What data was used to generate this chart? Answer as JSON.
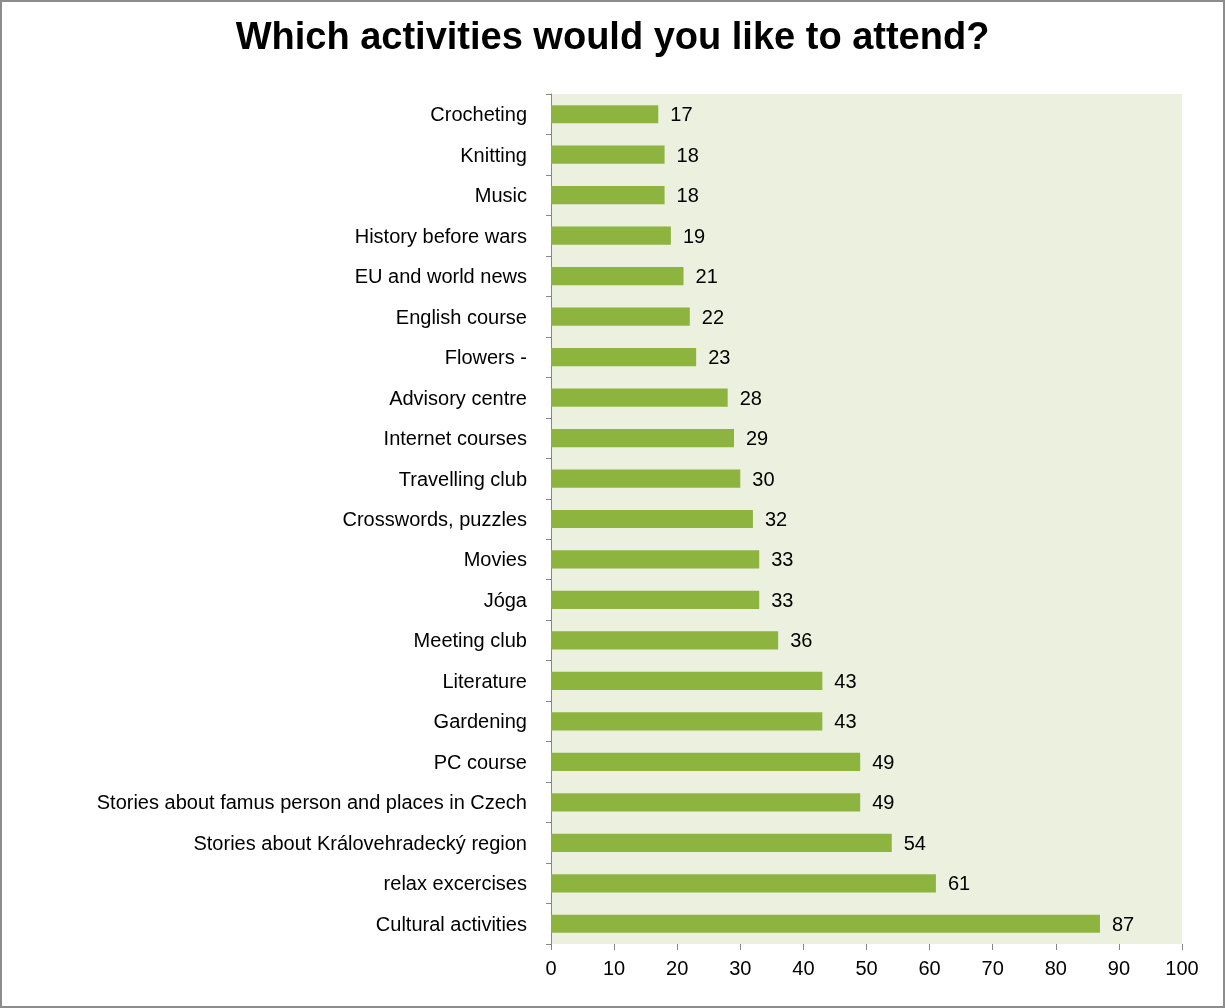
{
  "chart_data": {
    "type": "bar",
    "orientation": "horizontal",
    "title": "Which activities would you like to attend?",
    "categories": [
      "Crocheting",
      "Knitting",
      "Music",
      "History before wars",
      "EU and world news",
      "English course",
      "Flowers -",
      "Advisory centre",
      "Internet courses",
      "Travelling club",
      "Crosswords, puzzles",
      "Movies",
      "Jóga",
      "Meeting club",
      "Literature",
      "Gardening",
      "PC course",
      "Stories about famus person and places in Czech",
      "Stories about Královehradecký region",
      "relax excercises",
      "Cultural activities"
    ],
    "values": [
      17,
      18,
      18,
      19,
      21,
      22,
      23,
      28,
      29,
      30,
      32,
      33,
      33,
      36,
      43,
      43,
      49,
      49,
      54,
      61,
      87
    ],
    "color": "#8cb43f",
    "xlim": [
      0,
      100
    ],
    "xticks": [
      0,
      10,
      20,
      30,
      40,
      50,
      60,
      70,
      80,
      90,
      100
    ],
    "data_labels": true,
    "grid": false
  }
}
